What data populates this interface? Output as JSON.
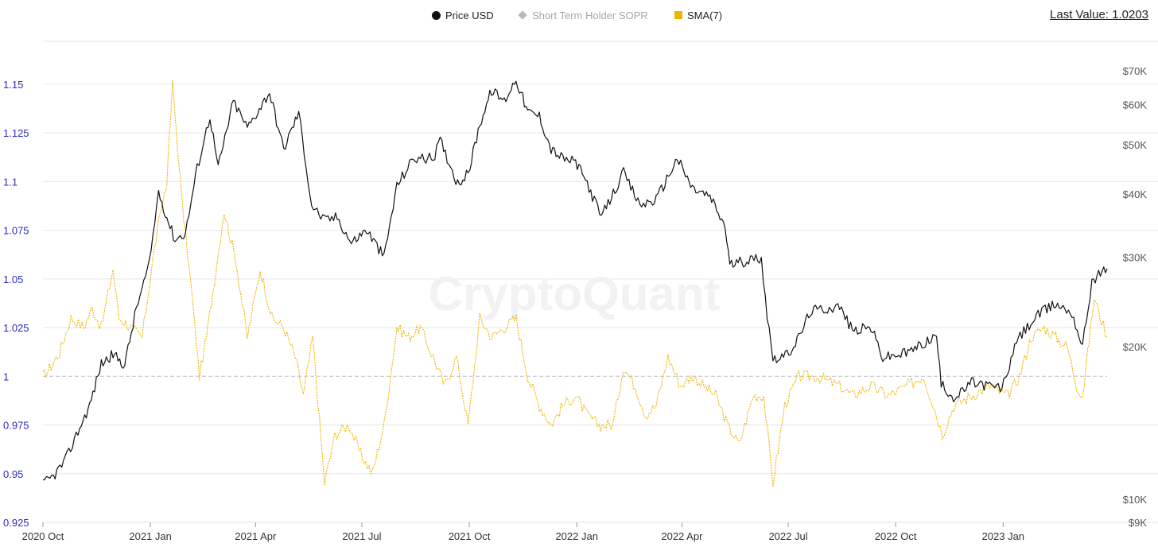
{
  "legend": {
    "price_label": "Price USD",
    "sopr_label": "Short Term Holder SOPR",
    "sma_label": "SMA(7)"
  },
  "last_value": "Last Value: 1.0203",
  "watermark": "CryptoQuant",
  "colors": {
    "price": "#111111",
    "sopr_legend": "#b8b8b8",
    "sma": "#f0b400",
    "baseline": "#bdbdbd",
    "grid": "#e6e6e6",
    "left_ticks": "#2b2bb8"
  },
  "chart_data": {
    "type": "line",
    "x_tick_labels": [
      "2020 Oct",
      "2021 Jan",
      "2021 Apr",
      "2021 Jul",
      "2021 Oct",
      "2022 Jan",
      "2022 Apr",
      "2022 Jul",
      "2022 Oct",
      "2023 Jan"
    ],
    "x_tick_dates": [
      "2020-10-01",
      "2021-01-01",
      "2021-04-01",
      "2021-07-01",
      "2021-10-01",
      "2022-01-01",
      "2022-04-01",
      "2022-07-01",
      "2022-10-01",
      "2023-01-01"
    ],
    "x_range": [
      "2020-10-01",
      "2023-03-31"
    ],
    "left_axis": {
      "ticks": [
        0.925,
        0.95,
        0.975,
        1,
        1.025,
        1.05,
        1.075,
        1.1,
        1.125,
        1.15
      ],
      "tick_labels": [
        "0.925",
        "0.95",
        "0.975",
        "1",
        "1.025",
        "1.05",
        "1.075",
        "1.1",
        "1.125",
        "1.15"
      ],
      "ylim": [
        0.925,
        1.172
      ]
    },
    "right_axis": {
      "scale": "log",
      "ticks": [
        9000,
        10000,
        20000,
        30000,
        40000,
        50000,
        60000,
        70000
      ],
      "tick_labels": [
        "$9K",
        "$10K",
        "$20K",
        "$30K",
        "$40K",
        "$50K",
        "$60K",
        "$70K"
      ],
      "ylim": [
        9000,
        80000
      ]
    },
    "reference_line": 1,
    "grid": true,
    "legend_position": "top-center",
    "series": [
      {
        "name": "Price USD",
        "axis": "right",
        "style": "solid",
        "x": [
          "2020-10-01",
          "2020-10-10",
          "2020-10-20",
          "2020-10-31",
          "2020-11-10",
          "2020-11-20",
          "2020-11-30",
          "2020-12-10",
          "2020-12-20",
          "2020-12-31",
          "2021-01-08",
          "2021-01-15",
          "2021-01-22",
          "2021-01-31",
          "2021-02-10",
          "2021-02-21",
          "2021-02-28",
          "2021-03-13",
          "2021-03-25",
          "2021-04-13",
          "2021-04-25",
          "2021-05-08",
          "2021-05-19",
          "2021-05-30",
          "2021-06-10",
          "2021-06-22",
          "2021-07-05",
          "2021-07-20",
          "2021-07-31",
          "2021-08-14",
          "2021-08-31",
          "2021-09-06",
          "2021-09-21",
          "2021-09-30",
          "2021-10-10",
          "2021-10-20",
          "2021-10-31",
          "2021-11-10",
          "2021-11-20",
          "2021-11-30",
          "2021-12-10",
          "2021-12-20",
          "2021-12-31",
          "2022-01-10",
          "2022-01-22",
          "2022-02-10",
          "2022-02-24",
          "2022-03-10",
          "2022-03-28",
          "2022-04-10",
          "2022-04-25",
          "2022-05-08",
          "2022-05-12",
          "2022-05-25",
          "2022-06-08",
          "2022-06-13",
          "2022-06-18",
          "2022-06-30",
          "2022-07-10",
          "2022-07-20",
          "2022-08-14",
          "2022-08-25",
          "2022-09-10",
          "2022-09-20",
          "2022-10-10",
          "2022-10-25",
          "2022-11-05",
          "2022-11-09",
          "2022-11-21",
          "2022-12-05",
          "2022-12-31",
          "2023-01-14",
          "2023-01-31",
          "2023-02-15",
          "2023-03-01",
          "2023-03-10",
          "2023-03-18",
          "2023-03-31"
        ],
        "values": [
          10700,
          11100,
          11900,
          13600,
          15300,
          18500,
          19300,
          18400,
          23800,
          29000,
          40500,
          36000,
          32500,
          33500,
          45000,
          57000,
          45000,
          61000,
          54000,
          63500,
          49000,
          58000,
          38000,
          35500,
          36000,
          32000,
          34000,
          30000,
          41500,
          47000,
          47000,
          51000,
          42000,
          43800,
          55000,
          64000,
          61000,
          67500,
          58000,
          57000,
          49000,
          47000,
          46200,
          42000,
          36000,
          44000,
          38000,
          39000,
          47000,
          41000,
          39500,
          34500,
          29000,
          29500,
          30000,
          23000,
          19000,
          19200,
          20800,
          23500,
          24000,
          21500,
          21800,
          19000,
          19400,
          20300,
          21000,
          16800,
          15800,
          17000,
          16550,
          20800,
          23100,
          24300,
          23300,
          20000,
          27000,
          28500
        ]
      },
      {
        "name": "SMA(7)",
        "axis": "left",
        "style": "dotted",
        "x": [
          "2020-10-01",
          "2020-10-08",
          "2020-10-15",
          "2020-10-25",
          "2020-11-05",
          "2020-11-12",
          "2020-11-20",
          "2020-11-30",
          "2020-12-05",
          "2020-12-15",
          "2020-12-25",
          "2021-01-03",
          "2021-01-10",
          "2021-01-15",
          "2021-01-20",
          "2021-01-28",
          "2021-02-05",
          "2021-02-12",
          "2021-02-18",
          "2021-02-25",
          "2021-03-05",
          "2021-03-15",
          "2021-03-25",
          "2021-04-05",
          "2021-04-15",
          "2021-04-25",
          "2021-05-05",
          "2021-05-12",
          "2021-05-20",
          "2021-05-30",
          "2021-06-08",
          "2021-06-20",
          "2021-06-30",
          "2021-07-10",
          "2021-07-20",
          "2021-07-31",
          "2021-08-10",
          "2021-08-20",
          "2021-08-31",
          "2021-09-10",
          "2021-09-20",
          "2021-09-30",
          "2021-10-10",
          "2021-10-20",
          "2021-10-31",
          "2021-11-10",
          "2021-11-20",
          "2021-11-30",
          "2021-12-10",
          "2021-12-20",
          "2021-12-31",
          "2022-01-10",
          "2022-01-20",
          "2022-02-01",
          "2022-02-10",
          "2022-02-20",
          "2022-03-01",
          "2022-03-10",
          "2022-03-20",
          "2022-03-31",
          "2022-04-10",
          "2022-04-20",
          "2022-04-30",
          "2022-05-10",
          "2022-05-20",
          "2022-06-01",
          "2022-06-10",
          "2022-06-18",
          "2022-06-28",
          "2022-07-10",
          "2022-07-25",
          "2022-08-14",
          "2022-08-25",
          "2022-09-10",
          "2022-09-25",
          "2022-10-10",
          "2022-10-25",
          "2022-11-05",
          "2022-11-10",
          "2022-11-20",
          "2022-12-05",
          "2022-12-20",
          "2023-01-05",
          "2023-01-15",
          "2023-01-25",
          "2023-02-05",
          "2023-02-15",
          "2023-02-25",
          "2023-03-05",
          "2023-03-10",
          "2023-03-20",
          "2023-03-31"
        ],
        "values": [
          1.0,
          1.005,
          1.012,
          1.03,
          1.025,
          1.035,
          1.025,
          1.055,
          1.03,
          1.025,
          1.02,
          1.06,
          1.085,
          1.1,
          1.15,
          1.09,
          1.045,
          1.0,
          1.02,
          1.05,
          1.085,
          1.06,
          1.02,
          1.055,
          1.03,
          1.025,
          1.01,
          0.99,
          1.02,
          0.945,
          0.97,
          0.975,
          0.96,
          0.95,
          0.975,
          1.025,
          1.02,
          1.025,
          1.01,
          0.995,
          1.01,
          0.975,
          1.03,
          1.02,
          1.025,
          1.03,
          1.0,
          0.985,
          0.975,
          0.985,
          0.99,
          0.98,
          0.975,
          0.975,
          1.005,
          0.995,
          0.98,
          0.985,
          1.01,
          0.995,
          1.0,
          0.995,
          0.99,
          0.975,
          0.965,
          0.99,
          0.99,
          0.945,
          0.985,
          1.0,
          1.0,
          0.995,
          0.99,
          0.995,
          0.99,
          0.995,
          1.0,
          0.98,
          0.97,
          0.985,
          0.99,
          0.995,
          0.99,
          1.0,
          1.02,
          1.025,
          1.02,
          1.015,
          0.995,
          0.99,
          1.04,
          1.0203
        ]
      }
    ]
  }
}
